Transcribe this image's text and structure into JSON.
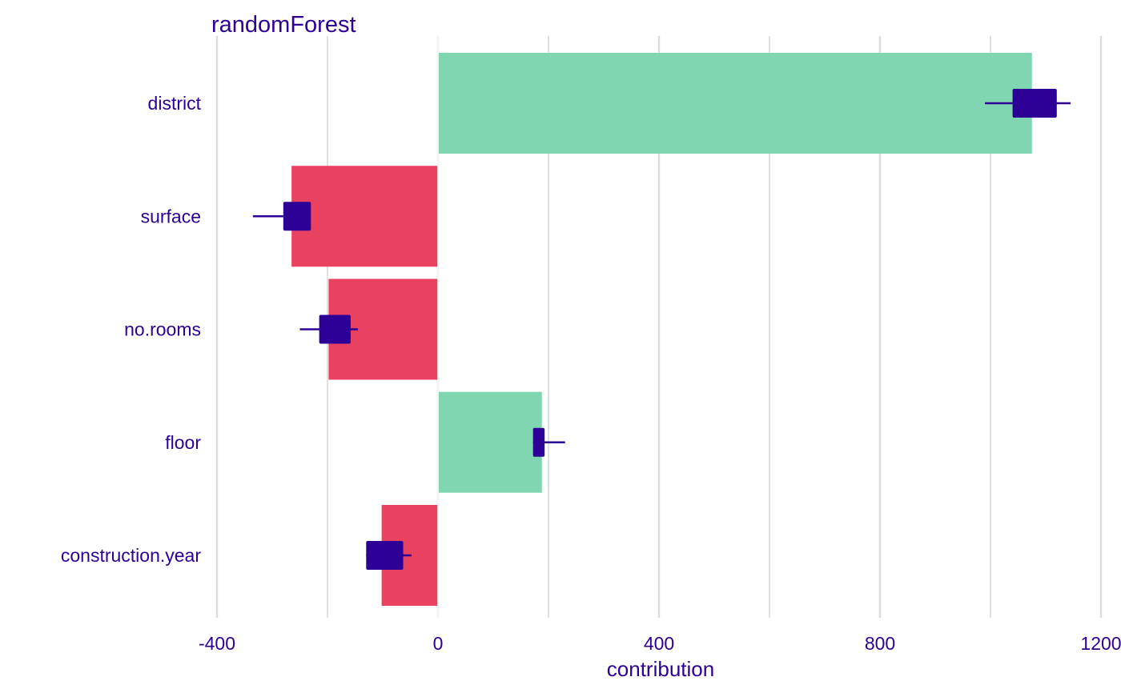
{
  "chart_data": {
    "type": "bar",
    "title": "randomForest",
    "xlabel": "contribution",
    "ylabel": "",
    "categories": [
      "district",
      "surface",
      "no.rooms",
      "floor",
      "construction.year"
    ],
    "values": [
      1075,
      -265,
      -198,
      188,
      -102
    ],
    "boxes": [
      {
        "low": 1040,
        "high": 1120
      },
      {
        "low": -280,
        "high": -230
      },
      {
        "low": -215,
        "high": -158
      },
      {
        "low": 172,
        "high": 193
      },
      {
        "low": -130,
        "high": -63
      }
    ],
    "whiskers": [
      {
        "low": 990,
        "high": 1145
      },
      {
        "low": -335,
        "high": -280
      },
      {
        "low": -250,
        "high": -145
      },
      {
        "low": 172,
        "high": 230
      },
      {
        "low": -130,
        "high": -48
      }
    ],
    "xlim": [
      -400,
      1200
    ],
    "xticks": [
      -400,
      0,
      400,
      800,
      1200
    ],
    "grid": true,
    "legend": "none"
  },
  "colors": {
    "positive": "#7fd6b0",
    "negative": "#e94260",
    "marker": "#2d0096",
    "text": "#2d0096",
    "grid": "#dcdcdc"
  }
}
